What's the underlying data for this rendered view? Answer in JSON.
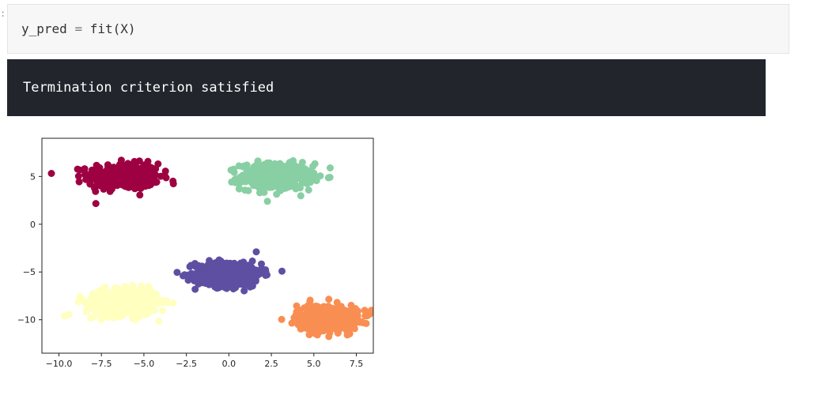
{
  "notebook": {
    "prompt_marker": ":",
    "code_cell": {
      "variable": "y_pred",
      "operator": "=",
      "call": "fit(X)"
    },
    "output_cell": {
      "text": "Termination criterion satisfied"
    }
  },
  "chart_data": {
    "type": "scatter",
    "title": "",
    "xlabel": "",
    "ylabel": "",
    "xlim": [
      -11,
      8.5
    ],
    "ylim": [
      -13.5,
      9
    ],
    "x_ticks": [
      "-10.0",
      "-7.5",
      "-5.0",
      "-2.5",
      "0.0",
      "2.5",
      "5.0",
      "7.5"
    ],
    "y_ticks": [
      "5",
      "0",
      "-5",
      "-10"
    ],
    "x_tick_values": [
      -10,
      -7.5,
      -5,
      -2.5,
      0,
      2.5,
      5,
      7.5
    ],
    "y_tick_values": [
      5,
      0,
      -5,
      -10
    ],
    "grid": false,
    "series": [
      {
        "color": "#9e0142",
        "center": [
          -6.2,
          5.0
        ],
        "spread": [
          1.4,
          0.9
        ],
        "count": 420
      },
      {
        "color": "#88cfa4",
        "center": [
          2.8,
          5.0
        ],
        "spread": [
          1.4,
          0.9
        ],
        "count": 420
      },
      {
        "color": "#5e4fa2",
        "center": [
          0.0,
          -5.2
        ],
        "spread": [
          1.3,
          0.9
        ],
        "count": 420
      },
      {
        "color": "#ffffbf",
        "center": [
          -6.3,
          -8.2
        ],
        "spread": [
          1.4,
          0.9
        ],
        "count": 420
      },
      {
        "color": "#f98e52",
        "center": [
          5.8,
          -9.8
        ],
        "spread": [
          1.2,
          0.9
        ],
        "count": 420
      }
    ]
  }
}
